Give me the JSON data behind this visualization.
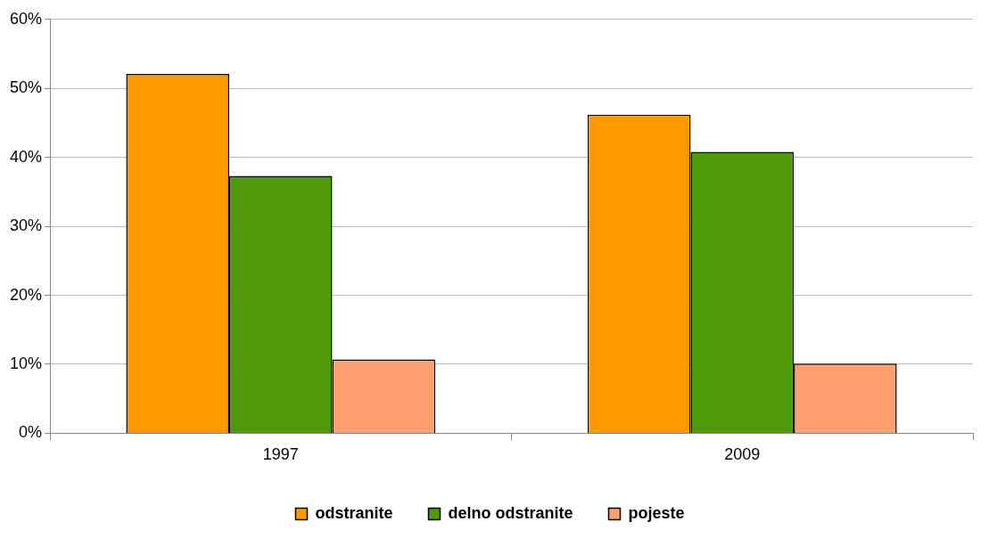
{
  "chart_data": {
    "type": "bar",
    "categories": [
      "1997",
      "2009"
    ],
    "series": [
      {
        "name": "odstranite",
        "color": "#ff9900",
        "values": [
          52.1,
          46.2
        ]
      },
      {
        "name": "delno odstranite",
        "color": "#4f9a0a",
        "values": [
          37.3,
          40.8
        ]
      },
      {
        "name": "pojeste",
        "color": "#ff9f6f",
        "values": [
          10.7,
          10.1
        ]
      }
    ],
    "ylim": [
      0,
      60
    ],
    "yticks": [
      {
        "value": 0,
        "label": "0%"
      },
      {
        "value": 10,
        "label": "10%"
      },
      {
        "value": 20,
        "label": "20%"
      },
      {
        "value": 30,
        "label": "30%"
      },
      {
        "value": 40,
        "label": "40%"
      },
      {
        "value": 50,
        "label": "50%"
      },
      {
        "value": 60,
        "label": "60%"
      }
    ],
    "grid": "y",
    "legend": "bottom"
  }
}
